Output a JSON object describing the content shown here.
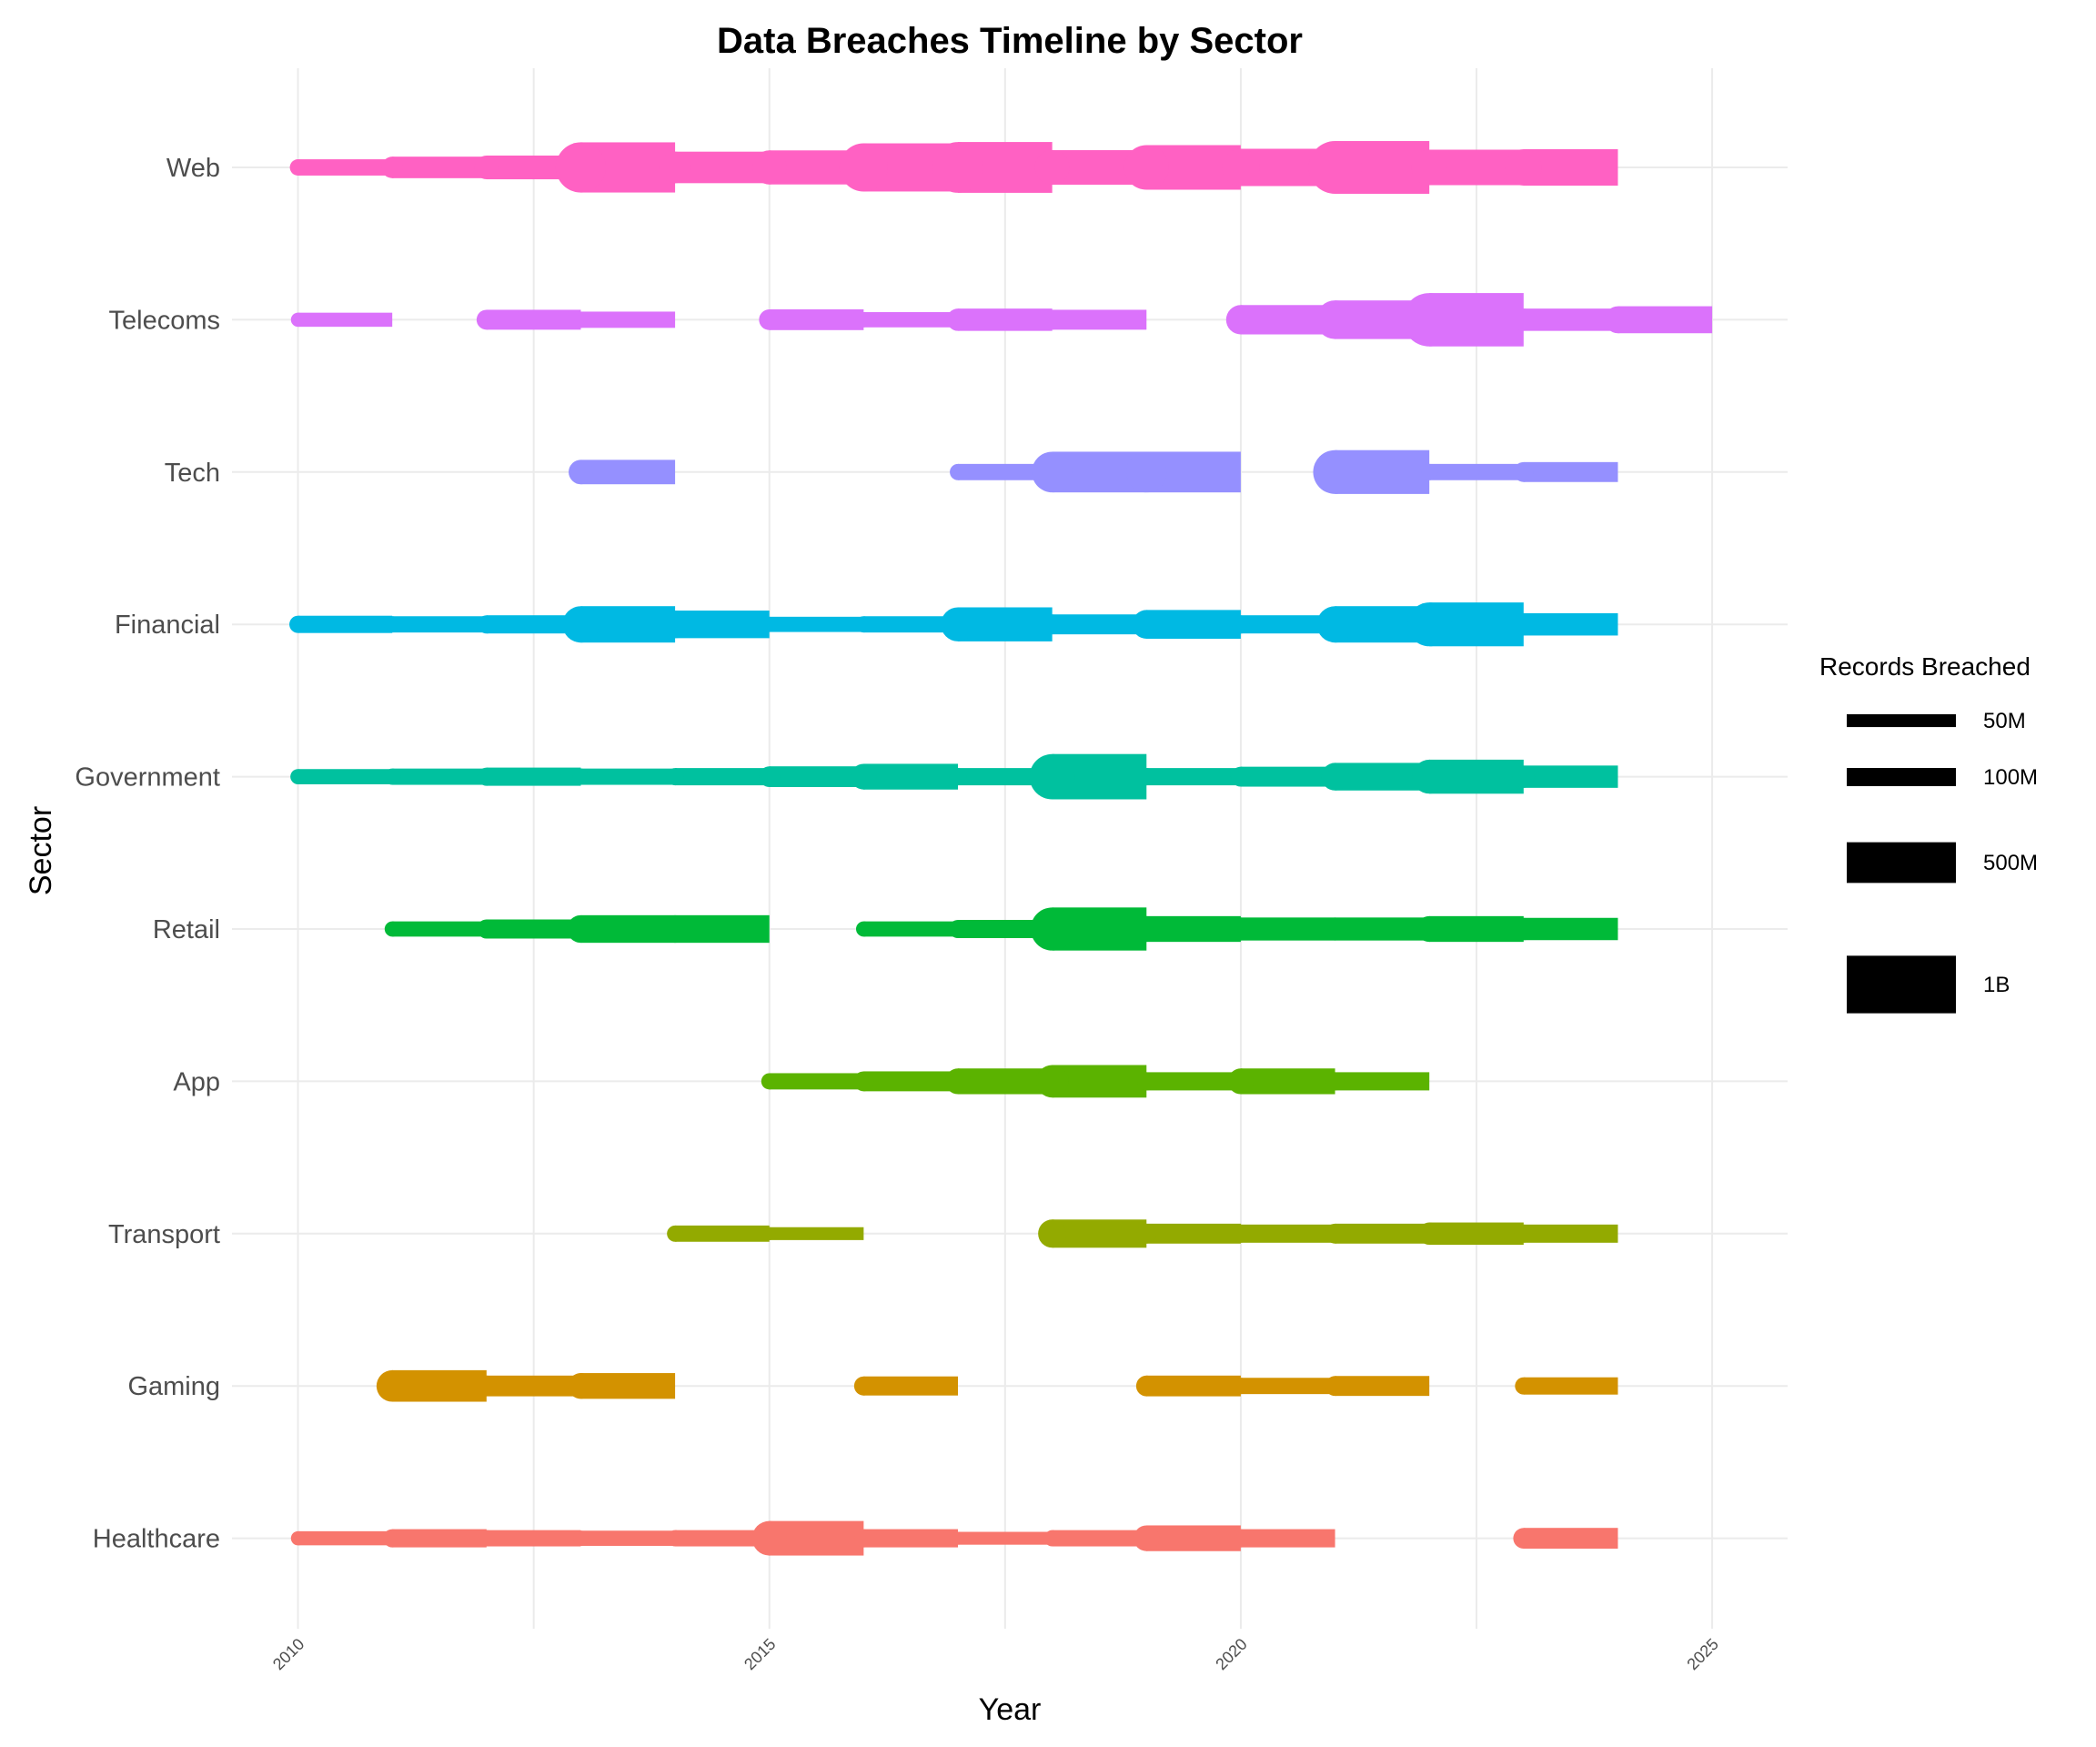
{
  "chart_data": {
    "type": "timeline",
    "title": "Data Breaches Timeline by Sector",
    "xlabel": "Year",
    "ylabel": "Sector",
    "x_ticks": [
      2010,
      2015,
      2020,
      2025
    ],
    "xlim": [
      2009.3,
      2025.8
    ],
    "grid": true,
    "legend": {
      "title": "Records Breached",
      "position": "right",
      "entries": [
        {
          "label": "50M",
          "value": 50
        },
        {
          "label": "100M",
          "value": 100
        },
        {
          "label": "500M",
          "value": 500
        },
        {
          "label": "1B",
          "value": 1000
        }
      ]
    },
    "units": "M",
    "series": [
      {
        "name": "Healthcare",
        "color": "#F8766D",
        "points": [
          {
            "year": 2010,
            "value": 60
          },
          {
            "year": 2011,
            "value": 100
          },
          {
            "year": 2012,
            "value": 80
          },
          {
            "year": 2013,
            "value": 70
          },
          {
            "year": 2014,
            "value": 80
          },
          {
            "year": 2015,
            "value": 360
          },
          {
            "year": 2016,
            "value": 100
          },
          {
            "year": 2017,
            "value": 50
          },
          {
            "year": 2018,
            "value": 80
          },
          {
            "year": 2019,
            "value": 200
          },
          {
            "year": 2020,
            "value": 100
          },
          {
            "year": null,
            "value": null
          },
          {
            "year": 2023,
            "value": 130
          }
        ],
        "end": 2024
      },
      {
        "name": "Gaming",
        "color": "#D39200",
        "points": [
          {
            "year": 2011,
            "value": 300
          },
          {
            "year": 2012,
            "value": 130
          },
          {
            "year": 2013,
            "value": 200
          },
          {
            "year": null,
            "value": null
          },
          {
            "year": 2016,
            "value": 110
          },
          {
            "year": null,
            "value": null
          },
          {
            "year": 2019,
            "value": 130
          },
          {
            "year": 2020,
            "value": 80
          },
          {
            "year": 2021,
            "value": 120
          },
          {
            "year": null,
            "value": null
          },
          {
            "year": 2023,
            "value": 90
          }
        ],
        "end": 2024
      },
      {
        "name": "Transport",
        "color": "#93AA00",
        "points": [
          {
            "year": 2014,
            "value": 80
          },
          {
            "year": 2015,
            "value": 50
          },
          {
            "year": null,
            "value": null
          },
          {
            "year": 2018,
            "value": 240
          },
          {
            "year": 2019,
            "value": 120
          },
          {
            "year": 2020,
            "value": 100
          },
          {
            "year": 2021,
            "value": 120
          },
          {
            "year": 2022,
            "value": 150
          },
          {
            "year": 2023,
            "value": 100
          }
        ],
        "end": 2024
      },
      {
        "name": "App",
        "color": "#5BB300",
        "points": [
          {
            "year": 2015,
            "value": 80
          },
          {
            "year": 2016,
            "value": 120
          },
          {
            "year": 2017,
            "value": 200
          },
          {
            "year": 2018,
            "value": 320
          },
          {
            "year": 2019,
            "value": 100
          },
          {
            "year": 2020,
            "value": 200
          },
          {
            "year": 2021,
            "value": 100
          }
        ],
        "end": 2022
      },
      {
        "name": "Retail",
        "color": "#00BA38",
        "points": [
          {
            "year": 2011,
            "value": 70
          },
          {
            "year": 2012,
            "value": 110
          },
          {
            "year": 2013,
            "value": 230
          },
          {
            "year": 2014,
            "value": 230
          },
          {
            "year": null,
            "value": null
          },
          {
            "year": 2016,
            "value": 70
          },
          {
            "year": 2017,
            "value": 100
          },
          {
            "year": 2018,
            "value": 560
          },
          {
            "year": 2019,
            "value": 200
          },
          {
            "year": 2020,
            "value": 160
          },
          {
            "year": 2021,
            "value": 160
          },
          {
            "year": 2022,
            "value": 200
          },
          {
            "year": 2023,
            "value": 150
          }
        ],
        "end": 2024
      },
      {
        "name": "Government",
        "color": "#00C19F",
        "points": [
          {
            "year": 2010,
            "value": 70
          },
          {
            "year": 2011,
            "value": 80
          },
          {
            "year": 2012,
            "value": 100
          },
          {
            "year": 2013,
            "value": 80
          },
          {
            "year": 2014,
            "value": 90
          },
          {
            "year": 2015,
            "value": 130
          },
          {
            "year": 2016,
            "value": 200
          },
          {
            "year": 2017,
            "value": 90
          },
          {
            "year": 2018,
            "value": 620
          },
          {
            "year": 2019,
            "value": 90
          },
          {
            "year": 2020,
            "value": 120
          },
          {
            "year": 2021,
            "value": 230
          },
          {
            "year": 2022,
            "value": 350
          },
          {
            "year": 2023,
            "value": 150
          }
        ],
        "end": 2024
      },
      {
        "name": "Financial",
        "color": "#00B9E3",
        "points": [
          {
            "year": 2010,
            "value": 90
          },
          {
            "year": 2011,
            "value": 80
          },
          {
            "year": 2012,
            "value": 100
          },
          {
            "year": 2013,
            "value": 400
          },
          {
            "year": 2014,
            "value": 230
          },
          {
            "year": 2015,
            "value": 70
          },
          {
            "year": 2016,
            "value": 80
          },
          {
            "year": 2017,
            "value": 350
          },
          {
            "year": 2018,
            "value": 120
          },
          {
            "year": 2019,
            "value": 250
          },
          {
            "year": 2020,
            "value": 100
          },
          {
            "year": 2021,
            "value": 400
          },
          {
            "year": 2022,
            "value": 580
          },
          {
            "year": 2023,
            "value": 150
          }
        ],
        "end": 2024
      },
      {
        "name": "Tech",
        "color": "#9590FF",
        "points": [
          {
            "year": 2013,
            "value": 180
          },
          {
            "year": null,
            "value": null
          },
          {
            "year": 2017,
            "value": 80
          },
          {
            "year": 2018,
            "value": 500
          },
          {
            "year": 2019,
            "value": 500
          },
          {
            "year": null,
            "value": null
          },
          {
            "year": 2021,
            "value": 580
          },
          {
            "year": 2022,
            "value": 80
          },
          {
            "year": 2023,
            "value": 120
          }
        ],
        "end": 2024
      },
      {
        "name": "Telecoms",
        "color": "#DB72FB",
        "points": [
          {
            "year": 2010,
            "value": 60
          },
          {
            "year": null,
            "value": null
          },
          {
            "year": 2012,
            "value": 120
          },
          {
            "year": 2013,
            "value": 80
          },
          {
            "year": null,
            "value": null
          },
          {
            "year": 2015,
            "value": 130
          },
          {
            "year": 2016,
            "value": 70
          },
          {
            "year": 2017,
            "value": 150
          },
          {
            "year": 2018,
            "value": 120
          },
          {
            "year": null,
            "value": null
          },
          {
            "year": 2020,
            "value": 260
          },
          {
            "year": 2021,
            "value": 450
          },
          {
            "year": 2022,
            "value": 860
          },
          {
            "year": 2023,
            "value": 150
          },
          {
            "year": 2024,
            "value": 220
          }
        ],
        "end": 2025
      },
      {
        "name": "Web",
        "color": "#FF61C3",
        "points": [
          {
            "year": 2010,
            "value": 80
          },
          {
            "year": 2011,
            "value": 140
          },
          {
            "year": 2012,
            "value": 170
          },
          {
            "year": 2013,
            "value": 760
          },
          {
            "year": 2014,
            "value": 300
          },
          {
            "year": 2015,
            "value": 350
          },
          {
            "year": 2016,
            "value": 700
          },
          {
            "year": 2017,
            "value": 780
          },
          {
            "year": 2018,
            "value": 360
          },
          {
            "year": 2019,
            "value": 600
          },
          {
            "year": 2020,
            "value": 420
          },
          {
            "year": 2021,
            "value": 840
          },
          {
            "year": 2022,
            "value": 380
          },
          {
            "year": 2023,
            "value": 400
          }
        ],
        "end": 2024
      }
    ]
  }
}
